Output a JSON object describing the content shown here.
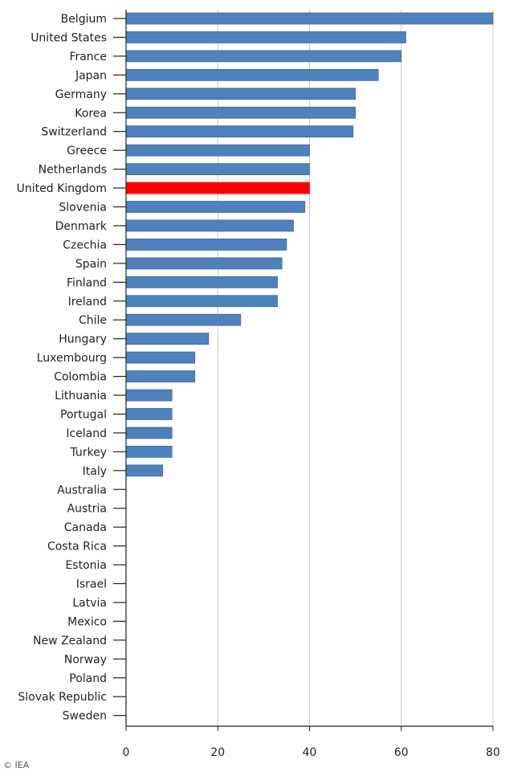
{
  "chart_data": {
    "type": "bar",
    "orientation": "horizontal",
    "categories": [
      "Belgium",
      "United States",
      "France",
      "Japan",
      "Germany",
      "Korea",
      "Switzerland",
      "Greece",
      "Netherlands",
      "United Kingdom",
      "Slovenia",
      "Denmark",
      "Czechia",
      "Spain",
      "Finland",
      "Ireland",
      "Chile",
      "Hungary",
      "Luxembourg",
      "Colombia",
      "Lithuania",
      "Portugal",
      "Iceland",
      "Turkey",
      "Italy",
      "Australia",
      "Austria",
      "Canada",
      "Costa Rica",
      "Estonia",
      "Israel",
      "Latvia",
      "Mexico",
      "New Zealand",
      "Norway",
      "Poland",
      "Slovak Republic",
      "Sweden"
    ],
    "values": [
      80,
      61,
      60,
      55,
      50,
      50,
      49.5,
      40,
      40,
      40,
      39,
      36.5,
      35,
      34,
      33,
      33,
      25,
      18,
      15,
      15,
      10,
      10,
      10,
      10,
      8,
      0,
      0,
      0,
      0,
      0,
      0,
      0,
      0,
      0,
      0,
      0,
      0,
      0
    ],
    "highlight": "United Kingdom",
    "xlim": [
      0,
      80
    ],
    "xticks": [
      0,
      20,
      40,
      60,
      80
    ],
    "grid": true,
    "title": "",
    "xlabel": "",
    "ylabel": "",
    "colors": {
      "bar": "#4f81bd",
      "bar_stroke": "#3a6aa5",
      "highlight": "#ff0000",
      "grid": "#c8c8c8",
      "axis": "#222222"
    }
  },
  "credit": "© IEA"
}
